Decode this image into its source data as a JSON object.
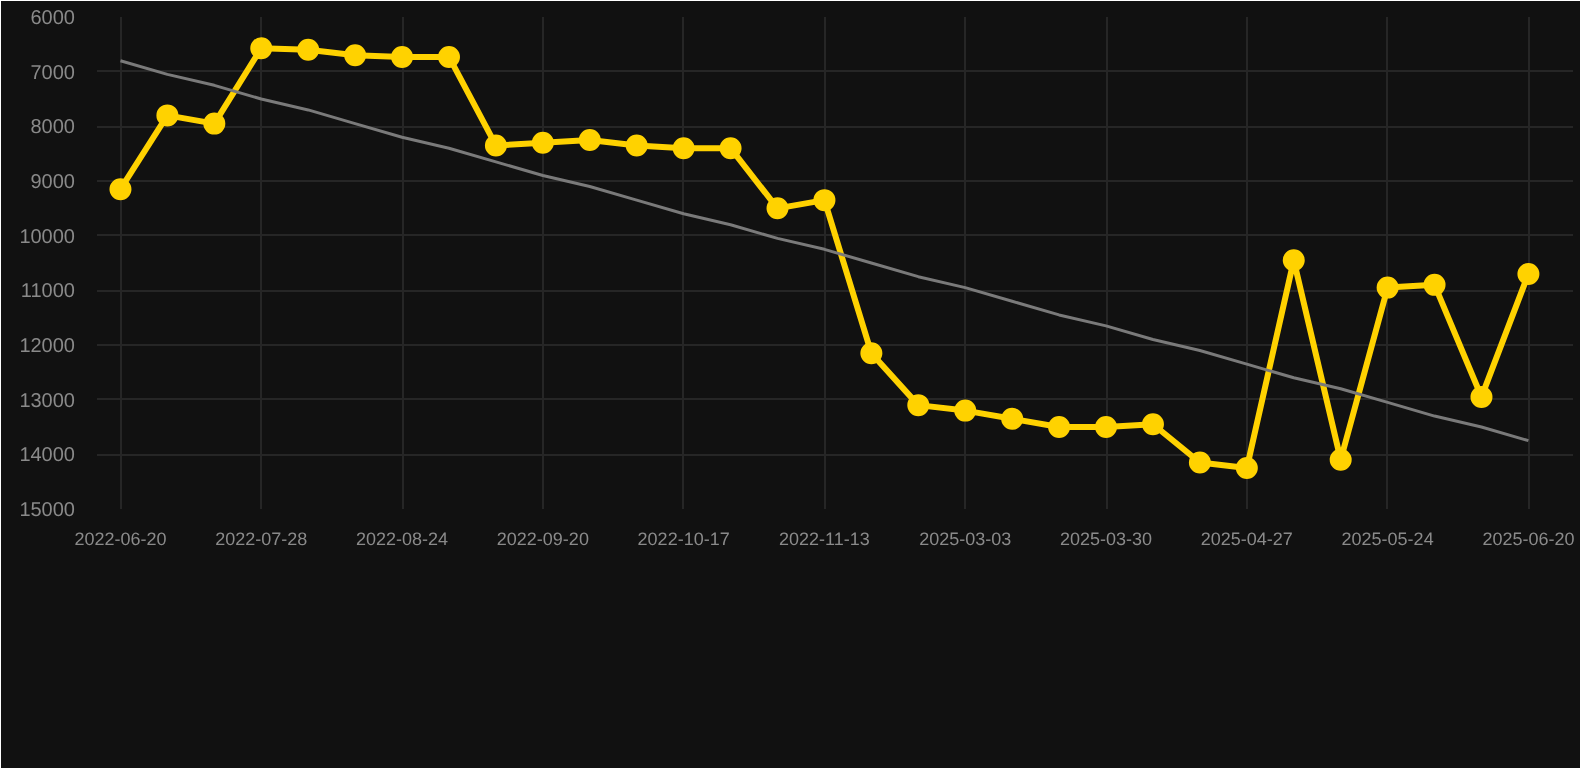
{
  "chart_data": {
    "type": "line",
    "categories": [
      "2022-06-20",
      null,
      null,
      "2022-07-28",
      null,
      null,
      "2022-08-24",
      null,
      null,
      "2022-09-20",
      null,
      null,
      "2022-10-17",
      null,
      null,
      "2022-11-13",
      null,
      null,
      "2025-03-03",
      null,
      null,
      "2025-03-30",
      null,
      null,
      "2025-04-27",
      null,
      null,
      "2025-05-24",
      null,
      null,
      "2025-06-20"
    ],
    "series": [
      {
        "color": "#ffd200",
        "marker": "circle",
        "values": [
          9150,
          7800,
          7950,
          6570,
          6600,
          6700,
          6730,
          6730,
          8350,
          8300,
          8250,
          8350,
          8400,
          8400,
          9500,
          9350,
          12150,
          13100,
          13200,
          13350,
          13500,
          13500,
          13450,
          14150,
          14250,
          10450,
          14100,
          10950,
          10900,
          12950,
          10700
        ]
      },
      {
        "type": "line",
        "color": "#7a7a7a",
        "marker": "none",
        "values": [
          6800,
          7050,
          7250,
          7500,
          7700,
          7950,
          8200,
          8400,
          8650,
          8900,
          9100,
          9350,
          9600,
          9800,
          10050,
          10250,
          10500,
          10750,
          10950,
          11200,
          11450,
          11650,
          11900,
          12100,
          12350,
          12600,
          12800,
          13050,
          13300,
          13500,
          13750
        ]
      }
    ],
    "ylim": [
      15000,
      6000
    ],
    "yticks": [
      6000,
      7000,
      8000,
      9000,
      10000,
      11000,
      12000,
      13000,
      14000,
      15000
    ],
    "grid": true
  }
}
